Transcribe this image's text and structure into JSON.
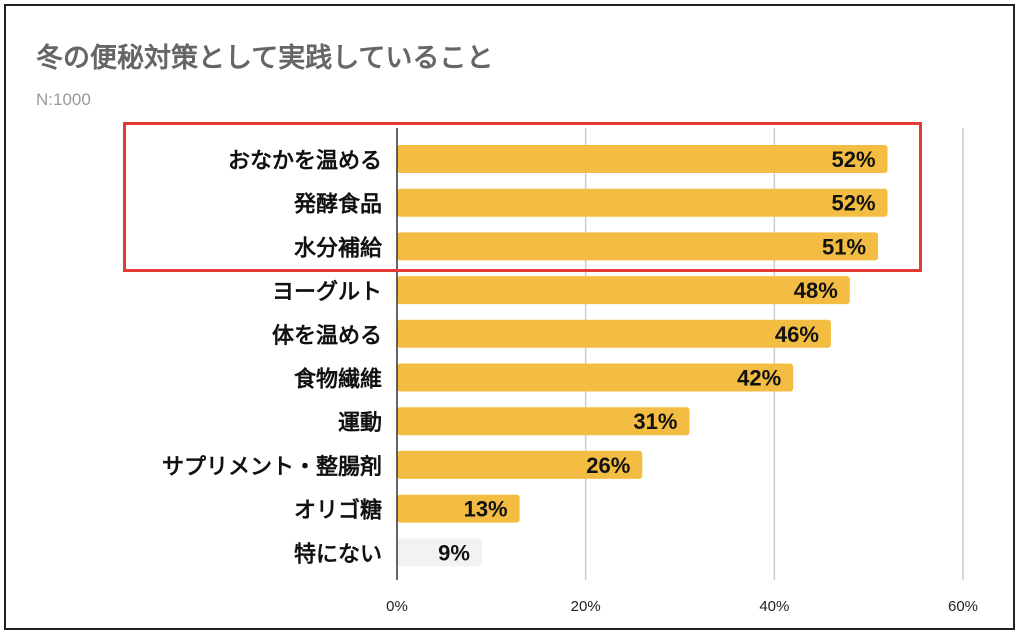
{
  "chart_data": {
    "type": "bar",
    "orientation": "horizontal",
    "title": "冬の便秘対策として実践していること",
    "subtitle": "N:1000",
    "categories": [
      "おなかを温める",
      "発酵食品",
      "水分補給",
      "ヨーグルト",
      "体を温める",
      "食物繊維",
      "運動",
      "サプリメント・整腸剤",
      "オリゴ糖",
      "特にない"
    ],
    "values": [
      52,
      52,
      51,
      48,
      46,
      42,
      31,
      26,
      13,
      9
    ],
    "data_labels": [
      "52%",
      "52%",
      "51%",
      "48%",
      "46%",
      "42%",
      "31%",
      "26%",
      "13%",
      "9%"
    ],
    "xlim": [
      0,
      60
    ],
    "xticks": [
      "0%",
      "20%",
      "40%",
      "60%"
    ],
    "xtick_values": [
      0,
      20,
      40,
      60
    ],
    "grid": true,
    "highlighted_categories": [
      "おなかを温める",
      "発酵食品",
      "水分補給"
    ],
    "colors": {
      "bar": "#f2bd42",
      "bar_none": "#f2f2f2",
      "highlight_box": "#e53935",
      "grid": "#cccccc"
    }
  }
}
